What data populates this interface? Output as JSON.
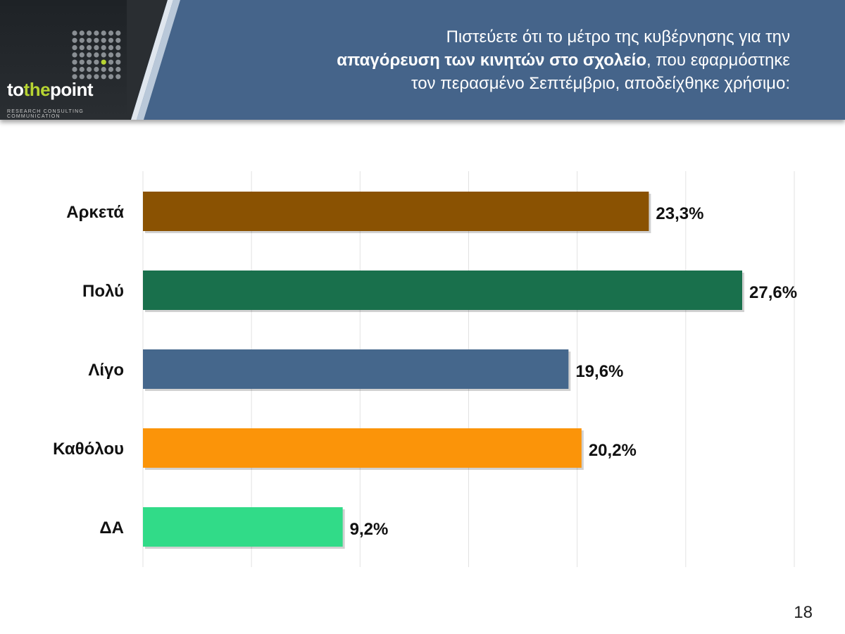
{
  "header": {
    "question_pre": "Πιστεύετε ότι το μέτρο της κυβέρνησης για την",
    "question_bold": "απαγόρευση των κινητών στο σχολείο",
    "question_mid": ", που εφαρμόστηκε",
    "question_post": "τον περασμένο Σεπτέμβριο, αποδείχθηκε χρήσιμο:",
    "background_color": "#45648a"
  },
  "logo": {
    "word_to": "to",
    "word_the": "the",
    "word_point": "point",
    "tagline": "RESEARCH  CONSULTING  COMMUNICATION",
    "accent_color": "#b7d432"
  },
  "page_number": "18",
  "chart_data": {
    "type": "bar",
    "orientation": "horizontal",
    "categories": [
      "Αρκετά",
      "Πολύ",
      "Λίγο",
      "Καθόλου",
      "ΔΑ"
    ],
    "values": [
      23.3,
      27.6,
      19.6,
      20.2,
      9.2
    ],
    "value_labels": [
      "23,3%",
      "27,6%",
      "19,6%",
      "20,2%",
      "9,2%"
    ],
    "colors": [
      "#8a5202",
      "#19704c",
      "#45678c",
      "#fb9409",
      "#31db88"
    ],
    "xlim": [
      0,
      30
    ],
    "grid": true,
    "legend": "none"
  }
}
